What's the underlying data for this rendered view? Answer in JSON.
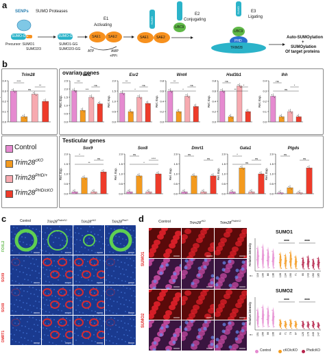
{
  "colors": {
    "control": "#e58ad0",
    "cko": "#f39a1e",
    "phd": "#f7aab0",
    "phdcko": "#ee3b2a",
    "teal": "#2bb3c9",
    "orange": "#f7911e",
    "green": "#5fb847",
    "blue": "#2a6fd1"
  },
  "panel_a": {
    "label": "a",
    "senps": "SENPs",
    "sumo_proteases": "SUMO Proteases",
    "sumo_gg_left": "SUMO-GG",
    "precursor_line1": "Precursor: SUMO1",
    "precursor_line2": "SUMO2/3",
    "sumo_gg_mid": "SUMO-GG",
    "forms_line1": "SUMO1-GG",
    "forms_line2": "SUMO2/3-GG",
    "e1": "E1",
    "activating": "Activating",
    "sae1": "SAE1",
    "sae2": "SAE2",
    "atp": "ATP",
    "amp": "AMP",
    "ppi": "+PPi",
    "sae1b": "SAE1",
    "sae2b": "SAE2",
    "sumo_vert": "SUMO",
    "e2": "E2",
    "conjugating": "Conjugating",
    "ubc9": "UBC9",
    "sumo_vert2": "SUMO",
    "e3": "E3",
    "ligating": "Ligating",
    "ubc9b": "UBC9",
    "phd": "PHD",
    "trim28": "TRIM28",
    "out1": "Auto-SUMOylation",
    "out2": "+",
    "out3": "SUMOylation",
    "out4": "Of target proteins"
  },
  "panel_b": {
    "label": "b",
    "trim28_gene": "Trim28",
    "ovarian_title": "ovarian  genes",
    "testicular_title": "Testicular genes",
    "yaxis": "Rel. Exp.",
    "legend": [
      {
        "label": "Control",
        "color": "#e58ad0"
      },
      {
        "label": "Trim28",
        "sup": "cKO",
        "color": "#f39a1e"
      },
      {
        "label": "Trim28",
        "sup": "PHD/+",
        "color": "#f7aab0"
      },
      {
        "label": "Trim28",
        "sup": "PHD/cKO",
        "color": "#ee3b2a"
      }
    ],
    "charts": [
      {
        "gene": "Trim28",
        "values": [
          0.3,
          0.05,
          0.27,
          0.2
        ],
        "ticks": [
          "0.0",
          "0.1",
          "0.2",
          "0.3",
          "0.4"
        ],
        "ymax": 0.4,
        "sig": [
          "****",
          "**",
          "ns"
        ]
      },
      {
        "gene": "Foxl2",
        "values": [
          1.9,
          0.7,
          1.5,
          1.1
        ],
        "ticks": [
          "0.0",
          "0.5",
          "1.0",
          "1.5",
          "2.0",
          "2.5"
        ],
        "ymax": 2.5,
        "sig": [
          "***",
          "ns",
          "***"
        ]
      },
      {
        "gene": "Esr2",
        "values": [
          1.4,
          0.5,
          1.2,
          0.9
        ],
        "ticks": [
          "0.0",
          "0.5",
          "1.0",
          "1.5",
          "2.0"
        ],
        "ymax": 2.0,
        "sig": [
          "**",
          "ns",
          "*"
        ]
      },
      {
        "gene": "Wnt4",
        "values": [
          0.6,
          0.2,
          0.5,
          0.3
        ],
        "ticks": [
          "0.0",
          "0.2",
          "0.4",
          "0.6",
          "0.8"
        ],
        "ymax": 0.8,
        "sig": [
          "**",
          "ns",
          "*"
        ]
      },
      {
        "gene": "Hsd3b1",
        "values": [
          0.6,
          0.1,
          0.7,
          0.2
        ],
        "ticks": [
          "0.0",
          "0.2",
          "0.4",
          "0.6",
          "0.8"
        ],
        "ymax": 0.8,
        "sig": [
          "ns",
          "*",
          "**"
        ]
      },
      {
        "gene": "Ihh",
        "values": [
          0.25,
          0.05,
          0.1,
          0.05
        ],
        "ticks": [
          "0.0",
          "0.1",
          "0.2",
          "0.3",
          "0.4"
        ],
        "ymax": 0.4,
        "sig": [
          "ns",
          "*",
          "ns"
        ]
      },
      {
        "gene": "Sox9",
        "values": [
          0.1,
          0.8,
          0.1,
          1.1
        ],
        "ticks": [
          "0.0",
          "0.5",
          "1.0",
          "1.5",
          "2.0"
        ],
        "ymax": 2.0,
        "sig": [
          "*",
          "ns",
          "**"
        ]
      },
      {
        "gene": "Sox8",
        "values": [
          0.1,
          0.9,
          0.1,
          1.0
        ],
        "ticks": [
          "0.0",
          "0.5",
          "1.0",
          "1.5",
          "2.0"
        ],
        "ymax": 2.0,
        "sig": [
          "ns",
          "****",
          "*"
        ]
      },
      {
        "gene": "Dmrt1",
        "values": [
          0.1,
          0.9,
          0.1,
          0.9
        ],
        "ticks": [
          "0.0",
          "0.5",
          "1.0",
          "1.5",
          "2.0"
        ],
        "ymax": 2.0,
        "sig": [
          "ns",
          "ns"
        ]
      },
      {
        "gene": "Gata1",
        "values": [
          0.1,
          1.3,
          0.1,
          1.0
        ],
        "ticks": [
          "0.0",
          "0.5",
          "1.0",
          "1.5",
          "2.0"
        ],
        "ymax": 2.0,
        "sig": [
          "*",
          "ns",
          "ns"
        ]
      },
      {
        "gene": "Ptgds",
        "values": [
          0.05,
          0.3,
          0.05,
          1.3
        ],
        "ticks": [
          "0.0",
          "0.5",
          "1.0",
          "1.5",
          "2.0"
        ],
        "ymax": 2.0,
        "sig": [
          "ns",
          "ns"
        ]
      }
    ]
  },
  "panel_c": {
    "label": "c",
    "cols": [
      {
        "label": "Control"
      },
      {
        "label": "Trim28",
        "sup": "Phd/cKO"
      },
      {
        "label": "Trim28",
        "sup": "cKO"
      },
      {
        "label": "Trim28",
        "sup": "Phd/+"
      }
    ],
    "rows": [
      {
        "label": "FOXL2",
        "color": "#5fb847"
      },
      {
        "label": "SOX9",
        "color": "#e22b2b"
      },
      {
        "label": "SOX8",
        "color": "#e22b2b"
      },
      {
        "label": "DMRT1",
        "color": "#e22b2b"
      }
    ]
  },
  "panel_d": {
    "label": "d",
    "cols": [
      {
        "label": "Control"
      },
      {
        "label": "Trim28",
        "sup": "cKO"
      },
      {
        "label": "Trim28",
        "sup": "Phd/cKO"
      }
    ],
    "rows": [
      {
        "label": "SUMO1"
      },
      {
        "label": "SUMO2"
      }
    ],
    "plots": [
      {
        "title": "SUMO1",
        "ylabel": "Relative intensity",
        "sig": [
          "****",
          "****"
        ],
        "n": [
          "116",
          "109",
          "86",
          "138",
          "128",
          "134",
          "190",
          "71",
          "95",
          "143",
          "150",
          "185"
        ],
        "nlab": "n="
      },
      {
        "title": "SUMO2",
        "ylabel": "Relative intensity",
        "sig": [
          "****",
          "****"
        ],
        "n": [
          "151",
          "155",
          "99",
          "106",
          "91",
          "71",
          "73",
          "97",
          "125",
          "176",
          "245",
          "147"
        ],
        "nlab": "n="
      }
    ],
    "legend": [
      {
        "label": "Control",
        "color": "#e58ad0"
      },
      {
        "label": "cKO/cKO",
        "color": "#f39a1e"
      },
      {
        "label": "Phd/cKO",
        "color": "#b5234a"
      }
    ]
  }
}
